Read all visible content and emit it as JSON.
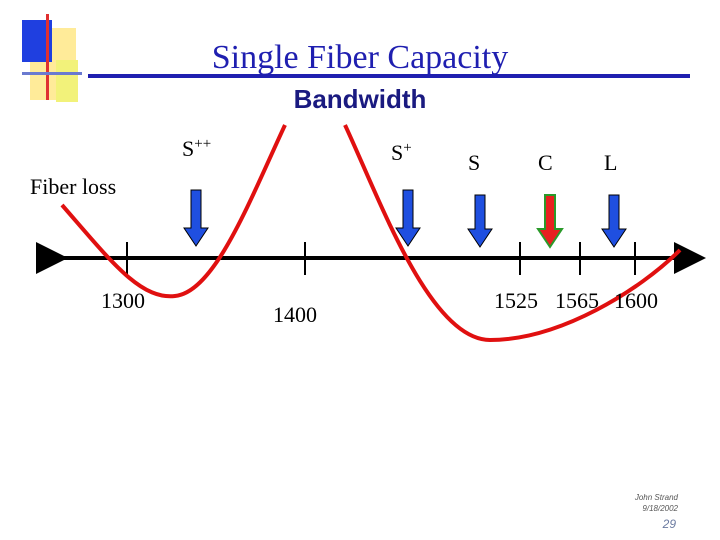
{
  "header": {
    "title": "Single Fiber Capacity",
    "subtitle": "Bandwidth"
  },
  "curve_label": "Fiber loss",
  "bands": [
    {
      "base": "S",
      "sup": "++"
    },
    {
      "base": "S",
      "sup": "+"
    },
    {
      "base": "S"
    },
    {
      "base": "C"
    },
    {
      "base": "L"
    }
  ],
  "wavelengths": [
    "1300",
    "1400",
    "1525",
    "1565",
    "1600"
  ],
  "footer": {
    "author": "John Strand",
    "date": "9/18/2002",
    "page": "29"
  }
}
